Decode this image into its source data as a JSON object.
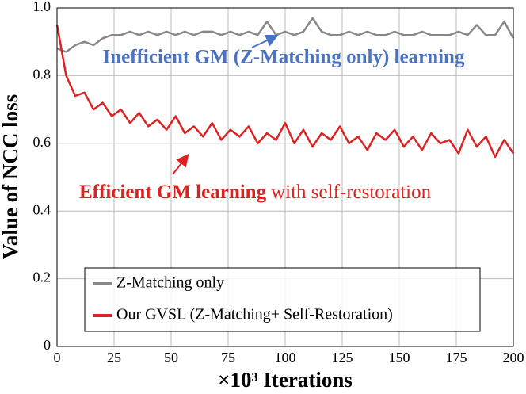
{
  "chart_data": {
    "type": "line",
    "xlabel": "×10³ Iterations",
    "ylabel": "Value of NCC loss",
    "annotations": [
      "Inefficient GM (Z-Matching only) learning",
      "Efficient GM learning",
      "with self-restoration"
    ],
    "x": [
      0,
      4,
      8,
      12,
      16,
      20,
      24,
      28,
      32,
      36,
      40,
      44,
      48,
      52,
      56,
      60,
      64,
      68,
      72,
      76,
      80,
      84,
      88,
      92,
      96,
      100,
      104,
      108,
      112,
      116,
      120,
      124,
      128,
      132,
      136,
      140,
      144,
      148,
      152,
      156,
      160,
      164,
      168,
      172,
      176,
      180,
      184,
      188,
      192,
      196,
      200
    ],
    "series": [
      {
        "name": "Z-Matching only",
        "color": "#888888",
        "values": [
          0.88,
          0.87,
          0.89,
          0.9,
          0.89,
          0.91,
          0.92,
          0.92,
          0.93,
          0.92,
          0.93,
          0.92,
          0.93,
          0.92,
          0.93,
          0.92,
          0.93,
          0.93,
          0.92,
          0.93,
          0.92,
          0.93,
          0.92,
          0.96,
          0.92,
          0.93,
          0.92,
          0.93,
          0.97,
          0.93,
          0.92,
          0.92,
          0.93,
          0.92,
          0.93,
          0.92,
          0.92,
          0.93,
          0.92,
          0.92,
          0.93,
          0.92,
          0.92,
          0.92,
          0.93,
          0.92,
          0.95,
          0.92,
          0.92,
          0.96,
          0.91
        ]
      },
      {
        "name": "Our GVSL (Z-Matching+ Self-Restoration)",
        "color": "#dd2222",
        "values": [
          0.95,
          0.8,
          0.74,
          0.75,
          0.7,
          0.72,
          0.68,
          0.7,
          0.66,
          0.69,
          0.65,
          0.67,
          0.64,
          0.68,
          0.63,
          0.65,
          0.62,
          0.66,
          0.61,
          0.64,
          0.62,
          0.65,
          0.6,
          0.63,
          0.61,
          0.66,
          0.6,
          0.64,
          0.59,
          0.63,
          0.61,
          0.65,
          0.6,
          0.62,
          0.58,
          0.63,
          0.61,
          0.64,
          0.59,
          0.62,
          0.58,
          0.63,
          0.6,
          0.61,
          0.57,
          0.64,
          0.59,
          0.62,
          0.56,
          0.61,
          0.57
        ]
      }
    ],
    "xlim": [
      0,
      200
    ],
    "xticks": [
      0,
      25,
      50,
      75,
      100,
      125,
      150,
      175,
      200
    ],
    "ylim": [
      0,
      1
    ],
    "yticks": [
      0,
      0.2,
      0.4,
      0.6,
      0.8,
      {
        "value": 1,
        "label": "1.0"
      }
    ],
    "grid": true,
    "legend_loc": "lower left"
  }
}
